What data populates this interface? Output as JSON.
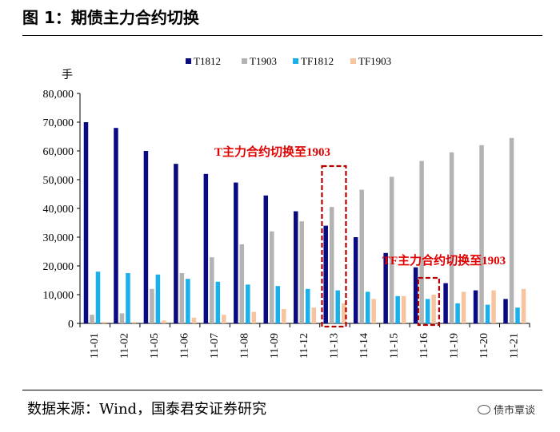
{
  "figure": {
    "title": "图 1：期债主力合约切换",
    "source": "数据来源：Wind，国泰君安证券研究",
    "brand": "债市覃谈"
  },
  "colors": {
    "T1812": "#0a0a82",
    "T1903": "#b3b3b3",
    "TF1812": "#1ab0ec",
    "TF1903": "#f8c49f",
    "annotation": "#e00000",
    "box": "#b00000"
  },
  "chart_data": {
    "type": "bar",
    "title": "",
    "ylabel": "手",
    "xlabel": "",
    "ylim": [
      0,
      80000
    ],
    "yticks": [
      0,
      10000,
      20000,
      30000,
      40000,
      50000,
      60000,
      70000,
      80000
    ],
    "ytick_labels": [
      "0",
      "10,000",
      "20,000",
      "30,000",
      "40,000",
      "50,000",
      "60,000",
      "70,000",
      "80,000"
    ],
    "legend_position": "top-center",
    "categories": [
      "11-01",
      "11-02",
      "11-05",
      "11-06",
      "11-07",
      "11-08",
      "11-09",
      "11-12",
      "11-13",
      "11-14",
      "11-15",
      "11-16",
      "11-19",
      "11-20",
      "11-21"
    ],
    "series": [
      {
        "name": "T1812",
        "values": [
          70000,
          68000,
          60000,
          55500,
          52000,
          49000,
          44500,
          39000,
          34000,
          30000,
          24500,
          19500,
          14000,
          11500,
          8500
        ]
      },
      {
        "name": "T1903",
        "values": [
          3000,
          3500,
          12000,
          17500,
          23000,
          27500,
          32000,
          35500,
          40500,
          46500,
          51000,
          56500,
          59500,
          62000,
          64500
        ]
      },
      {
        "name": "TF1812",
        "values": [
          18000,
          17500,
          17000,
          15500,
          14500,
          13500,
          13000,
          12000,
          11500,
          11000,
          9500,
          8500,
          7000,
          6500,
          5500
        ]
      },
      {
        "name": "TF1903",
        "values": [
          500,
          500,
          1000,
          2000,
          3000,
          4000,
          5000,
          5500,
          7000,
          8500,
          9500,
          10000,
          11000,
          11500,
          12000
        ]
      }
    ],
    "annotations": [
      {
        "text": "T主力合约切换至1903",
        "category": "11-13"
      },
      {
        "text": "TF主力合约切换至1903",
        "category": "11-16"
      }
    ]
  }
}
